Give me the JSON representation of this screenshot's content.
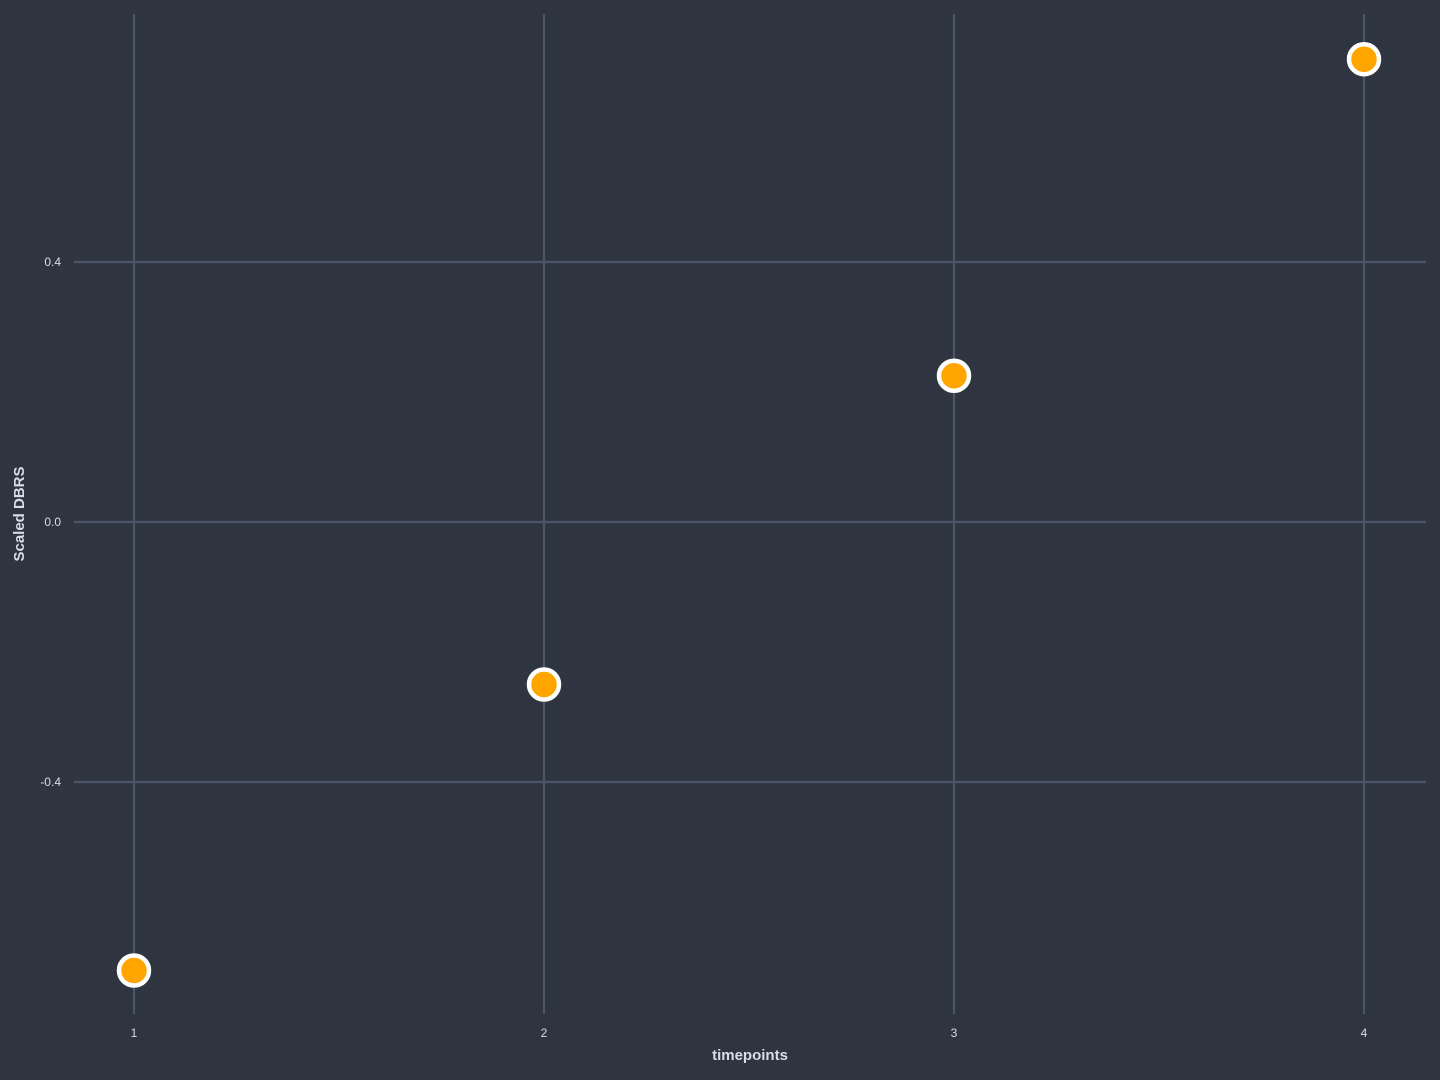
{
  "chart_data": {
    "type": "scatter",
    "title": "",
    "xlabel": "timepoints",
    "ylabel": "Scaled DBRS",
    "x": [
      1,
      2,
      3,
      4
    ],
    "y": [
      -0.69,
      -0.25,
      0.225,
      0.712
    ],
    "xticks": [
      "1",
      "2",
      "3",
      "4"
    ],
    "yticks": [
      -0.4,
      0.0,
      0.4
    ],
    "ytick_labels": [
      "-0.4",
      "0.0",
      "0.4"
    ],
    "xlim": [
      0.69,
      4.15
    ],
    "ylim": [
      -0.76,
      0.78
    ],
    "grid": true,
    "legend": "none",
    "colors": {
      "background": "#2e3440",
      "grid": "#4c566a",
      "point_fill": "#ffa500",
      "point_stroke": "#ffffff",
      "text": "#d8dee9"
    }
  }
}
